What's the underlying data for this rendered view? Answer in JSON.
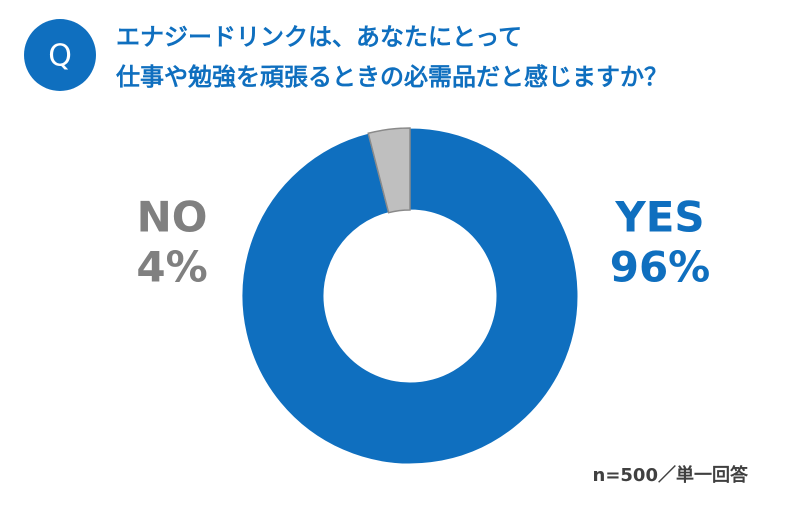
{
  "chart_data": {
    "type": "donut",
    "badge": "Q",
    "title": [
      "エナジードリンクは、あなたにとって",
      "仕事や勉強を頑張るときの必需品だと感じますか？"
    ],
    "categories": [
      "YES",
      "NO"
    ],
    "values": [
      96,
      4
    ],
    "value_labels": [
      "96%",
      "4%"
    ],
    "colors": [
      "#0f6fbf",
      "#bfbfbf"
    ],
    "label_colors": [
      "#0f6fbf",
      "#808080"
    ],
    "note": "n=500／単一回答"
  }
}
